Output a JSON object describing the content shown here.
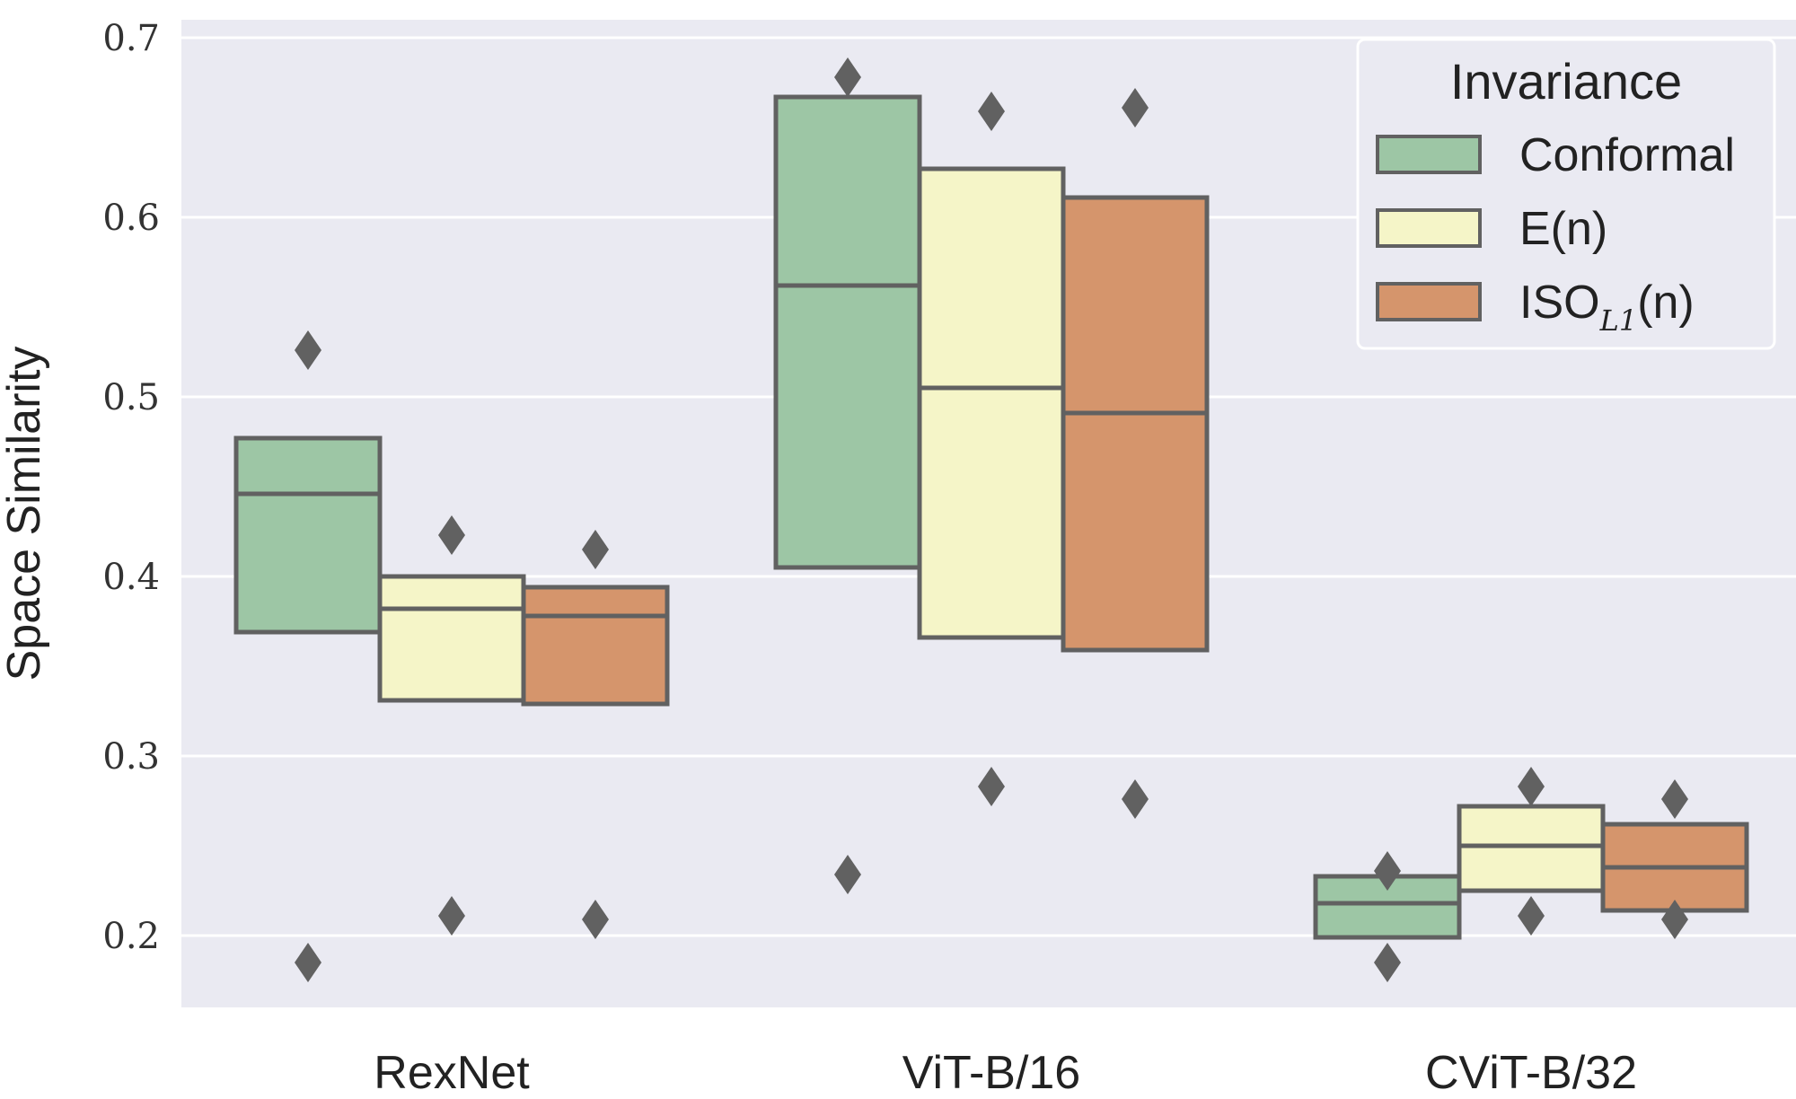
{
  "chart_data": {
    "type": "boxen",
    "title": "",
    "xlabel": "",
    "ylabel": "Space Similarity",
    "ylim": [
      0.16,
      0.71
    ],
    "yticks": [
      "0.2",
      "0.3",
      "0.4",
      "0.5",
      "0.6",
      "0.7"
    ],
    "grid": true,
    "legend": {
      "title": "Invariance",
      "placement": "top-right"
    },
    "categories": [
      "RexNet",
      "ViT-B/16",
      "CViT-B/32"
    ],
    "series": [
      {
        "name": "Conformal",
        "name_main": "Conformal",
        "name_sub": "",
        "name_suffix": "",
        "color": "#9dc6a5",
        "boxes": [
          {
            "low": 0.369,
            "high": 0.477,
            "median": 0.446,
            "outliers": [
              0.526,
              0.185
            ]
          },
          {
            "low": 0.405,
            "high": 0.667,
            "median": 0.562,
            "outliers": [
              0.678,
              0.234
            ]
          },
          {
            "low": 0.199,
            "high": 0.233,
            "median": 0.218,
            "outliers": [
              0.236,
              0.185
            ]
          }
        ]
      },
      {
        "name": "E(n)",
        "name_main": "E(n)",
        "name_sub": "",
        "name_suffix": "",
        "color": "#f5f5c8",
        "boxes": [
          {
            "low": 0.331,
            "high": 0.4,
            "median": 0.382,
            "outliers": [
              0.423,
              0.211
            ]
          },
          {
            "low": 0.366,
            "high": 0.627,
            "median": 0.505,
            "outliers": [
              0.659,
              0.283
            ]
          },
          {
            "low": 0.225,
            "high": 0.272,
            "median": 0.25,
            "outliers": [
              0.283,
              0.211
            ]
          }
        ]
      },
      {
        "name": "ISO_L1(n)",
        "name_main": "ISO",
        "name_sub": "L1",
        "name_suffix": "(n)",
        "color": "#d5956c",
        "boxes": [
          {
            "low": 0.329,
            "high": 0.394,
            "median": 0.378,
            "outliers": [
              0.415,
              0.209
            ]
          },
          {
            "low": 0.359,
            "high": 0.611,
            "median": 0.491,
            "outliers": [
              0.661,
              0.276
            ]
          },
          {
            "low": 0.214,
            "high": 0.262,
            "median": 0.238,
            "outliers": [
              0.276,
              0.209
            ]
          }
        ]
      }
    ]
  }
}
